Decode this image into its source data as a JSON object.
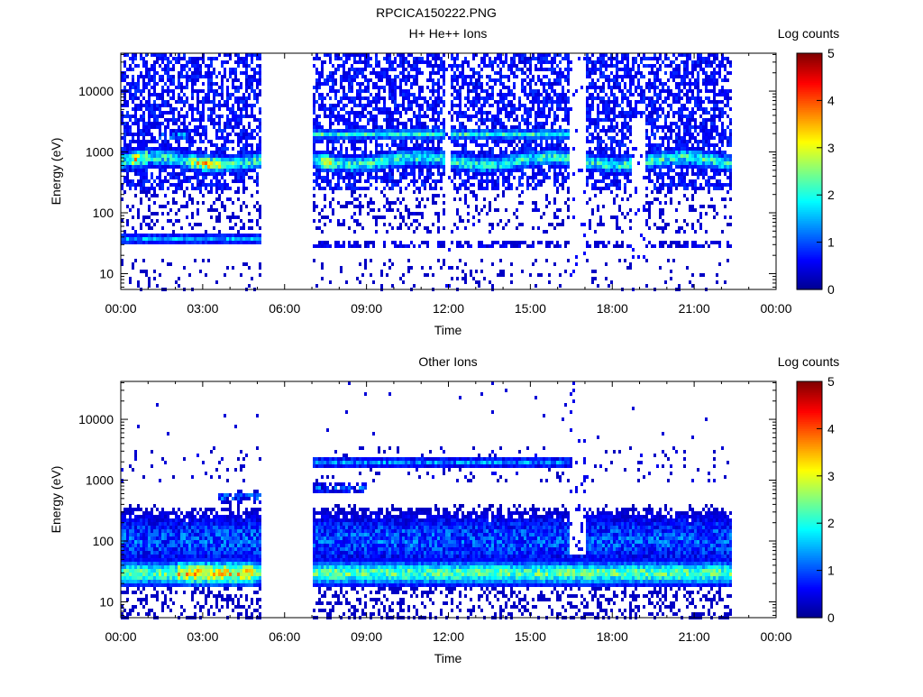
{
  "page_title": "RPCICA150222.PNG",
  "colors": {
    "background": "#ffffff",
    "axis": "#000000",
    "colormap": [
      "#00008f",
      "#0000ff",
      "#0080ff",
      "#00ffff",
      "#80ff80",
      "#ffff00",
      "#ff8000",
      "#ff0000",
      "#800000"
    ]
  },
  "chart_data": [
    {
      "type": "heatmap",
      "title": "H+ He++ Ions",
      "xlabel": "Time",
      "ylabel": "Energy (eV)",
      "x_tick_labels": [
        "00:00",
        "03:00",
        "06:00",
        "09:00",
        "12:00",
        "15:00",
        "18:00",
        "21:00",
        "00:00"
      ],
      "x_ticks_hours": [
        0,
        3,
        6,
        9,
        12,
        15,
        18,
        21,
        24
      ],
      "y_scale": "log",
      "y_tick_labels": [
        "10",
        "100",
        "1000",
        "10000"
      ],
      "y_ticks": [
        10,
        100,
        1000,
        10000
      ],
      "ylim": [
        5.5,
        42000
      ],
      "xlim_hours": [
        0,
        24
      ],
      "data_gaps_hours": [
        [
          5.1,
          7.0
        ],
        [
          22.3,
          24
        ]
      ],
      "colorbar": {
        "label": "Log counts",
        "range": [
          0,
          5
        ],
        "tick_labels": [
          "0",
          "1",
          "2",
          "3",
          "4",
          "5"
        ]
      }
    },
    {
      "type": "heatmap",
      "title": "Other Ions",
      "xlabel": "Time",
      "ylabel": "Energy (eV)",
      "x_tick_labels": [
        "00:00",
        "03:00",
        "06:00",
        "09:00",
        "12:00",
        "15:00",
        "18:00",
        "21:00",
        "00:00"
      ],
      "x_ticks_hours": [
        0,
        3,
        6,
        9,
        12,
        15,
        18,
        21,
        24
      ],
      "y_scale": "log",
      "y_tick_labels": [
        "10",
        "100",
        "1000",
        "10000"
      ],
      "y_ticks": [
        10,
        100,
        1000,
        10000
      ],
      "ylim": [
        5.5,
        42000
      ],
      "xlim_hours": [
        0,
        24
      ],
      "data_gaps_hours": [
        [
          5.1,
          7.0
        ],
        [
          22.3,
          24
        ]
      ],
      "colorbar": {
        "label": "Log counts",
        "range": [
          0,
          5
        ],
        "tick_labels": [
          "0",
          "1",
          "2",
          "3",
          "4",
          "5"
        ]
      }
    }
  ]
}
